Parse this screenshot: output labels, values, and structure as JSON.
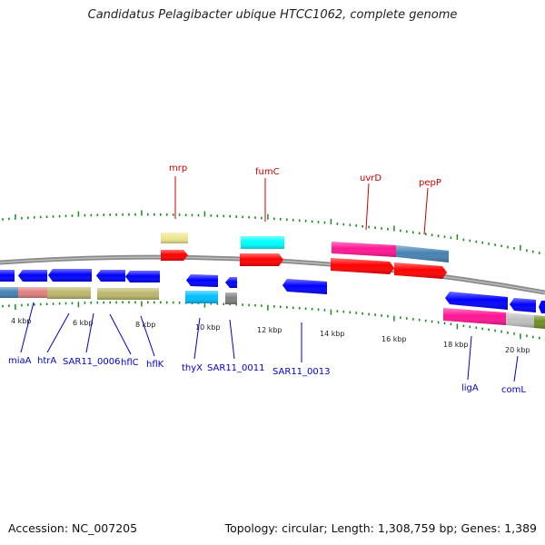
{
  "title": "Candidatus Pelagibacter ubique HTCC1062, complete genome",
  "footer": {
    "accession": "Accession: NC_007205",
    "summary": "Topology: circular; Length: 1,308,759 bp; Genes: 1,389"
  },
  "colors": {
    "forward_label": "#cc0000",
    "reverse_label": "#0000cc",
    "backbone": "#888888",
    "tick": "#1a8a1a"
  },
  "kbp_ticks": [
    "4 kbp",
    "6 kbp",
    "8 kbp",
    "10 kbp",
    "12 kbp",
    "14 kbp",
    "16 kbp",
    "18 kbp",
    "20 kbp"
  ],
  "forward_genes": [
    {
      "label": "mrp",
      "color": "#cc0000"
    },
    {
      "label": "fumC",
      "color": "#cc0000"
    },
    {
      "label": "uvrD",
      "color": "#cc0000"
    },
    {
      "label": "pepP",
      "color": "#cc0000"
    }
  ],
  "reverse_genes": [
    {
      "label": "miaA",
      "color": "#0000cc"
    },
    {
      "label": "htrA",
      "color": "#0000cc"
    },
    {
      "label": "SAR11_0006",
      "color": "#0000cc"
    },
    {
      "label": "hflC",
      "color": "#0000cc"
    },
    {
      "label": "hflK",
      "color": "#0000cc"
    },
    {
      "label": "thyX",
      "color": "#0000cc"
    },
    {
      "label": "SAR11_0011",
      "color": "#0000cc"
    },
    {
      "label": "SAR11_0013",
      "color": "#0000cc"
    },
    {
      "label": "ligA",
      "color": "#0000cc"
    },
    {
      "label": "comL",
      "color": "#0000cc"
    }
  ],
  "feature_colors": {
    "cds_forward": "#ff0000",
    "cds_reverse": "#0000ff",
    "blue_steel": "#4682b4",
    "salmon": "#e08080",
    "olive": "#bdb76b",
    "khaki": "#f0e68c",
    "cyan": "#00ffff",
    "sky": "#00bfff",
    "gray": "#808080",
    "pink": "#ff1493",
    "light_gray": "#c0c0c0",
    "yellow_green": "#6b8e23"
  }
}
